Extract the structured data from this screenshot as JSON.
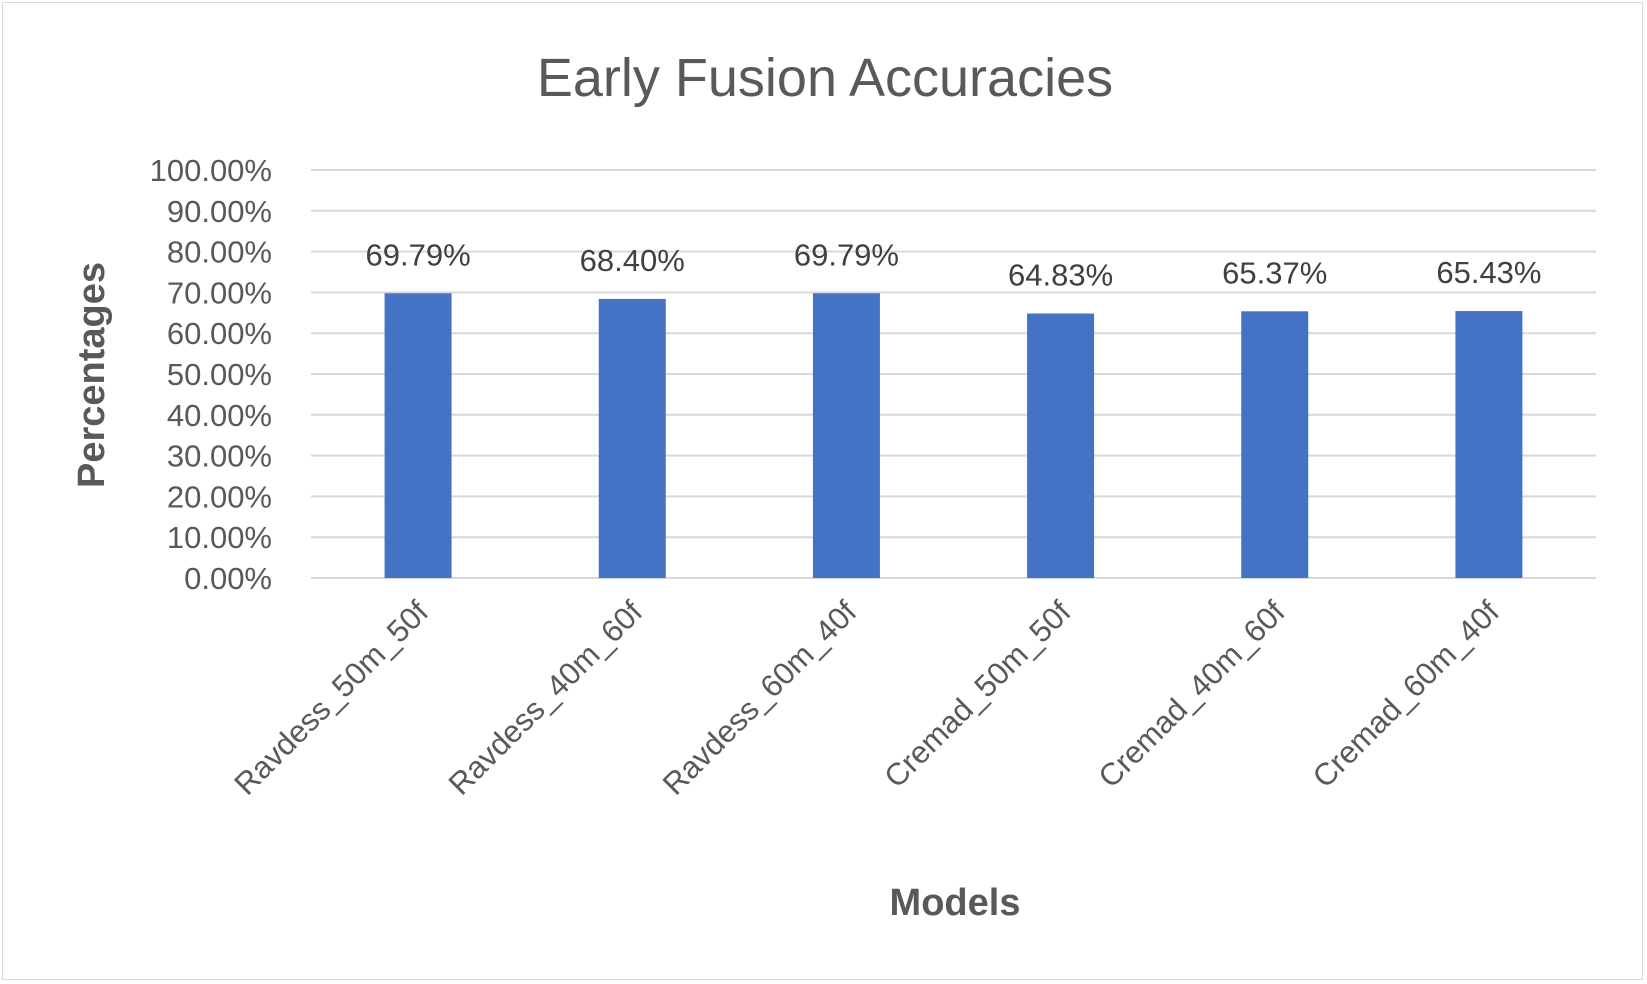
{
  "chart_data": {
    "type": "bar",
    "title": "Early Fusion Accuracies",
    "xlabel": "Models",
    "ylabel": "Percentages",
    "categories": [
      "Ravdess_50m_50f",
      "Ravdess_40m_60f",
      "Ravdess_60m_40f",
      "Cremad_50m_50f",
      "Cremad_40m_60f",
      "Cremad_60m_40f"
    ],
    "values": [
      69.79,
      68.4,
      69.79,
      64.83,
      65.37,
      65.43
    ],
    "data_labels": [
      "69.79%",
      "68.40%",
      "69.79%",
      "64.83%",
      "65.37%",
      "65.43%"
    ],
    "ylim": [
      0,
      100
    ],
    "yticks": [
      0,
      10,
      20,
      30,
      40,
      50,
      60,
      70,
      80,
      90,
      100
    ],
    "ytick_labels": [
      "0.00%",
      "10.00%",
      "20.00%",
      "30.00%",
      "40.00%",
      "50.00%",
      "60.00%",
      "70.00%",
      "80.00%",
      "90.00%",
      "100.00%"
    ],
    "grid": "horizontal",
    "legend": "none",
    "colors": {
      "bar": "#4472c4",
      "grid": "#d9d9d9",
      "text": "#595959",
      "title": "#595959",
      "data_label": "#404040"
    }
  }
}
